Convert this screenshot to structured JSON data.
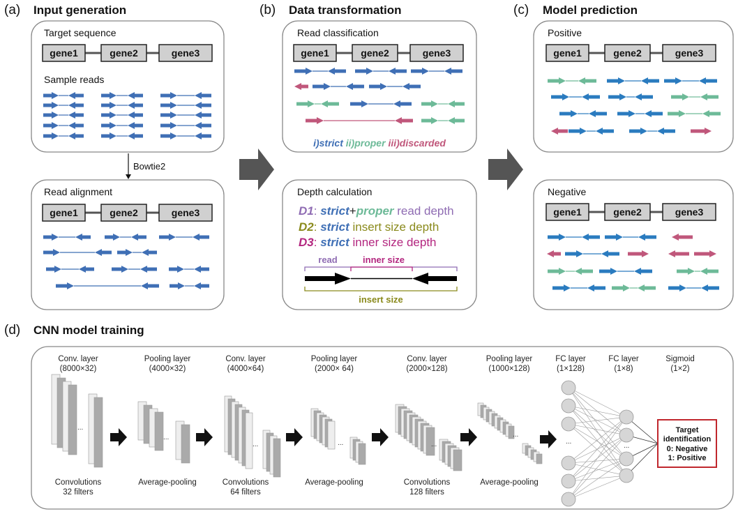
{
  "panels": {
    "a": {
      "label": "(a)",
      "title": "Input generation",
      "target_sequence": "Target sequence",
      "sample_reads": "Sample reads",
      "aligner": "Bowtie2",
      "read_alignment": "Read alignment"
    },
    "b": {
      "label": "(b)",
      "title": "Data transformation",
      "read_classification": "Read classification",
      "legend": {
        "strict": "i)strict",
        "proper": "ii)proper",
        "discarded": "iii)discarded"
      },
      "depth_calculation": "Depth calculation",
      "d1": {
        "key": "D1",
        "sep": ": ",
        "strict": "strict",
        "plus": "+",
        "proper": "proper",
        "rest": " read depth"
      },
      "d2": {
        "key": "D2",
        "sep": ": ",
        "strict": "strict",
        "rest": " insert size depth"
      },
      "d3": {
        "key": "D3",
        "sep": ": ",
        "strict": "strict",
        "rest": " inner size depth"
      },
      "diagram": {
        "read": "read",
        "inner_size": "inner size",
        "insert_size": "insert size"
      }
    },
    "c": {
      "label": "(c)",
      "title": "Model prediction",
      "positive": "Positive",
      "negative": "Negative"
    },
    "d": {
      "label": "(d)",
      "title": "CNN model training",
      "layers": [
        {
          "name": "Conv. layer",
          "dims": "(8000×32)",
          "caption1": "Convolutions",
          "caption2": "32 filters"
        },
        {
          "name": "Pooling layer",
          "dims": "(4000×32)",
          "caption1": "Average-pooling",
          "caption2": ""
        },
        {
          "name": "Conv. layer",
          "dims": "(4000×64)",
          "caption1": "Convolutions",
          "caption2": "64 filters"
        },
        {
          "name": "Pooling layer",
          "dims": "(2000× 64)",
          "caption1": "Average-pooling",
          "caption2": ""
        },
        {
          "name": "Conv. layer",
          "dims": "(2000×128)",
          "caption1": "Convolutions",
          "caption2": "128 filters"
        },
        {
          "name": "Pooling layer",
          "dims": "(1000×128)",
          "caption1": "Average-pooling",
          "caption2": ""
        },
        {
          "name": "FC layer",
          "dims": "(1×128)"
        },
        {
          "name": "FC layer",
          "dims": "(1×8)"
        },
        {
          "name": "Sigmoid",
          "dims": "(1×2)"
        }
      ],
      "output": {
        "line1": "Target",
        "line2": "identification",
        "line3": "0: Negative",
        "line4": "1: Positive"
      }
    }
  },
  "genes": [
    "gene1",
    "gene2",
    "gene3"
  ],
  "colors": {
    "strict": "#3f6fb5",
    "proper": "#6dba98",
    "discarded": "#c0577b",
    "strict_c": "#2a7bbf",
    "d1": "#8f6cb3",
    "d2": "#8a8a1c",
    "d3": "#b3267f",
    "output_border": "#c0272d"
  }
}
